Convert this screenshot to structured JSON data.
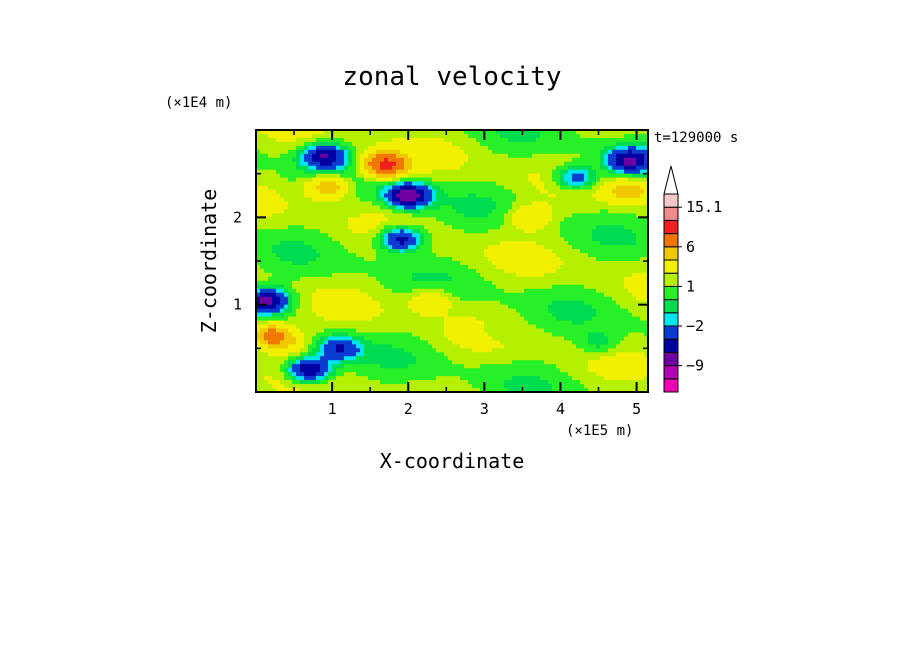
{
  "chart_data": {
    "type": "heatmap",
    "title": "zonal velocity",
    "xlabel": "X-coordinate",
    "ylabel": "Z-coordinate",
    "x_units": "(×1E5 m)",
    "y_units": "(×1E4 m)",
    "time_label": "t=129000 s",
    "xlim": [
      0,
      5.15
    ],
    "ylim": [
      0,
      3.0
    ],
    "x_ticks": [
      "1",
      "2",
      "3",
      "4",
      "5"
    ],
    "x_tick_values": [
      1,
      2,
      3,
      4,
      5
    ],
    "y_ticks": [
      "1",
      "2"
    ],
    "y_tick_values": [
      1,
      2
    ],
    "colorbar": {
      "levels": [
        -15,
        -12,
        -9,
        -6,
        -4,
        -2,
        -1,
        0,
        1,
        2,
        4,
        6,
        9,
        12,
        15.1
      ],
      "labels": [
        "15.1",
        "6",
        "1",
        "−2",
        "−9"
      ],
      "label_values": [
        15.1,
        6,
        1,
        -2,
        -9
      ],
      "colors": [
        "#f000b4",
        "#b400b4",
        "#6e00a0",
        "#0000a0",
        "#0a3cd2",
        "#00e6f0",
        "#00dc50",
        "#28f028",
        "#b4f000",
        "#f0f000",
        "#f0c800",
        "#f07800",
        "#f01e1e",
        "#f08c8c",
        "#f5c8c8",
        "#ffffff"
      ],
      "extend_max": true
    },
    "features": [
      {
        "x": 0.15,
        "z": 1.05,
        "value": -8
      },
      {
        "x": 0.2,
        "z": 0.65,
        "value": 7
      },
      {
        "x": 0.45,
        "z": 0.55,
        "value": 2
      },
      {
        "x": 0.9,
        "z": 2.7,
        "value": -7
      },
      {
        "x": 0.95,
        "z": 2.35,
        "value": 5
      },
      {
        "x": 1.7,
        "z": 2.6,
        "value": 9
      },
      {
        "x": 2.0,
        "z": 2.25,
        "value": -9
      },
      {
        "x": 1.9,
        "z": 1.75,
        "value": -7
      },
      {
        "x": 2.3,
        "z": 1.05,
        "value": 3
      },
      {
        "x": 3.6,
        "z": 2.0,
        "value": 3
      },
      {
        "x": 4.2,
        "z": 2.45,
        "value": -5
      },
      {
        "x": 4.9,
        "z": 2.65,
        "value": -7
      },
      {
        "x": 4.9,
        "z": 2.3,
        "value": 4
      },
      {
        "x": 4.5,
        "z": 0.55,
        "value": -2
      },
      {
        "x": 3.2,
        "z": 0.7,
        "value": -1
      },
      {
        "x": 1.1,
        "z": 0.5,
        "value": -5
      },
      {
        "x": 0.7,
        "z": 0.25,
        "value": -8
      }
    ]
  }
}
